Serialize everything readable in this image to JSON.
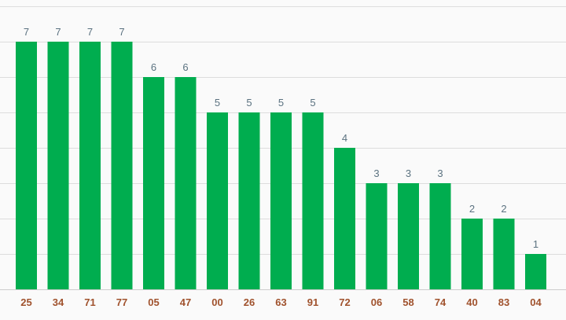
{
  "colors": {
    "bar": "#00ad4f",
    "value_label": "#5b7280",
    "category_label": "#a0522d",
    "grid": "#dddddd",
    "background": "#fafafa"
  },
  "chart_data": {
    "type": "bar",
    "categories": [
      "25",
      "34",
      "71",
      "77",
      "05",
      "47",
      "00",
      "26",
      "63",
      "91",
      "72",
      "06",
      "58",
      "74",
      "40",
      "83",
      "04"
    ],
    "values": [
      7,
      7,
      7,
      7,
      6,
      6,
      5,
      5,
      5,
      5,
      4,
      3,
      3,
      3,
      2,
      2,
      1
    ],
    "title": "",
    "xlabel": "",
    "ylabel": "",
    "ylim": [
      0,
      8
    ],
    "grid": true,
    "legend": "none",
    "data_labels": true
  }
}
